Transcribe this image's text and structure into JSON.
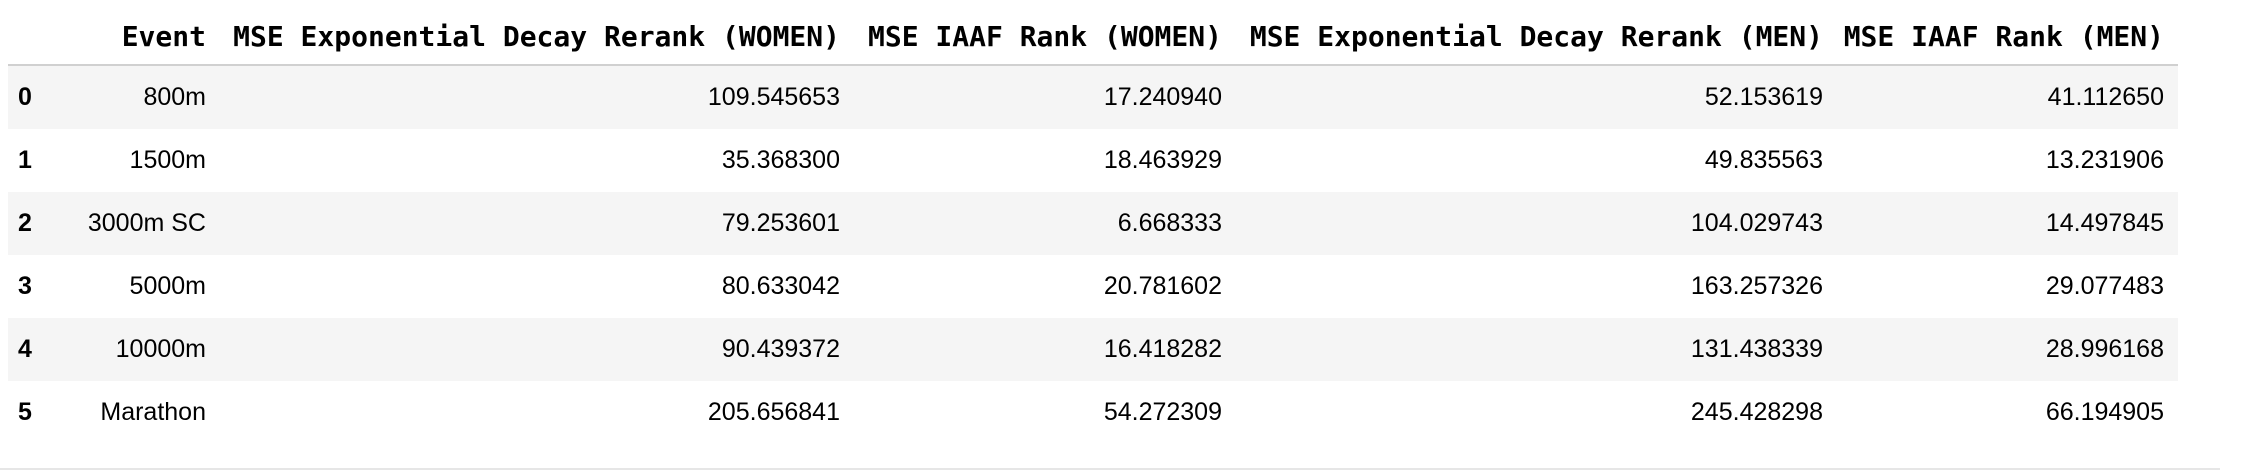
{
  "table": {
    "columns": [
      "",
      "Event",
      "MSE Exponential Decay Rerank (WOMEN)",
      "MSE IAAF Rank (WOMEN)",
      "MSE Exponential Decay Rerank (MEN)",
      "MSE IAAF Rank (MEN)"
    ],
    "rows": [
      {
        "index": "0",
        "event": "800m",
        "w_exp": "109.545653",
        "w_iaaf": "17.240940",
        "m_exp": "52.153619",
        "m_iaaf": "41.112650"
      },
      {
        "index": "1",
        "event": "1500m",
        "w_exp": "35.368300",
        "w_iaaf": "18.463929",
        "m_exp": "49.835563",
        "m_iaaf": "13.231906"
      },
      {
        "index": "2",
        "event": "3000m SC",
        "w_exp": "79.253601",
        "w_iaaf": "6.668333",
        "m_exp": "104.029743",
        "m_iaaf": "14.497845"
      },
      {
        "index": "3",
        "event": "5000m",
        "w_exp": "80.633042",
        "w_iaaf": "20.781602",
        "m_exp": "163.257326",
        "m_iaaf": "29.077483"
      },
      {
        "index": "4",
        "event": "10000m",
        "w_exp": "90.439372",
        "w_iaaf": "16.418282",
        "m_exp": "131.438339",
        "m_iaaf": "28.996168"
      },
      {
        "index": "5",
        "event": "Marathon",
        "w_exp": "205.656841",
        "w_iaaf": "54.272309",
        "m_exp": "245.428298",
        "m_iaaf": "66.194905"
      }
    ]
  }
}
